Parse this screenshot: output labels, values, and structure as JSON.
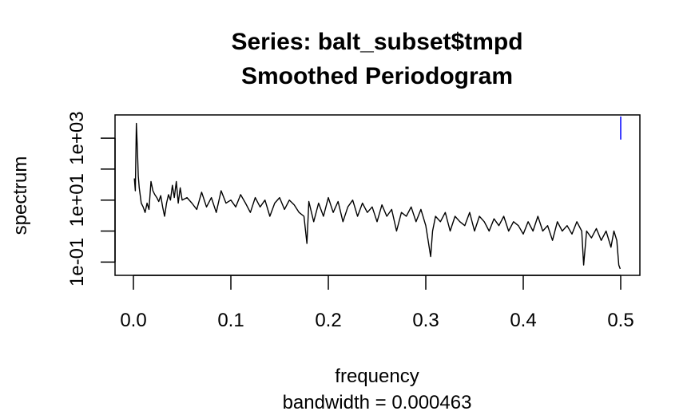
{
  "chart_data": {
    "type": "line",
    "title": "Series: balt_subset$tmpd",
    "subtitle": "Smoothed Periodogram",
    "xlabel": "frequency",
    "xlabel_sub": "bandwidth = 0.000463",
    "ylabel": "spectrum",
    "xlim": [
      0.0,
      0.5
    ],
    "ylim": [
      0.05,
      5000
    ],
    "y_scale": "log",
    "x_ticks": [
      0.0,
      0.1,
      0.2,
      0.3,
      0.4,
      0.5
    ],
    "x_tick_labels": [
      "0.0",
      "0.1",
      "0.2",
      "0.3",
      "0.4",
      "0.5"
    ],
    "y_ticks": [
      0.1,
      1,
      10,
      100,
      1000
    ],
    "y_labeled_ticks": [
      0.1,
      10,
      1000
    ],
    "y_tick_labels": [
      "1e-01",
      "1e+01",
      "1e+03"
    ],
    "grid": false,
    "series_color": "#000000",
    "ci_bar_color": "#0000ff",
    "ci_bar": {
      "x": 0.5,
      "y_low": 900,
      "y_high": 5000
    },
    "series": [
      {
        "x": [
          0.001,
          0.002,
          0.003,
          0.004,
          0.005,
          0.006,
          0.008,
          0.01,
          0.012,
          0.014,
          0.016,
          0.018,
          0.02,
          0.022,
          0.024,
          0.026,
          0.028,
          0.03,
          0.032,
          0.034,
          0.036,
          0.038,
          0.04,
          0.042,
          0.044,
          0.046,
          0.048,
          0.05,
          0.055,
          0.06,
          0.065,
          0.07,
          0.075,
          0.08,
          0.085,
          0.09,
          0.095,
          0.1,
          0.105,
          0.11,
          0.115,
          0.12,
          0.125,
          0.13,
          0.135,
          0.14,
          0.145,
          0.15,
          0.155,
          0.16,
          0.165,
          0.17,
          0.175,
          0.178,
          0.18,
          0.185,
          0.19,
          0.195,
          0.2,
          0.205,
          0.21,
          0.215,
          0.22,
          0.225,
          0.23,
          0.235,
          0.24,
          0.245,
          0.25,
          0.255,
          0.26,
          0.265,
          0.27,
          0.275,
          0.28,
          0.285,
          0.29,
          0.295,
          0.3,
          0.305,
          0.307,
          0.31,
          0.315,
          0.32,
          0.325,
          0.33,
          0.335,
          0.34,
          0.345,
          0.35,
          0.355,
          0.36,
          0.365,
          0.37,
          0.375,
          0.38,
          0.385,
          0.39,
          0.395,
          0.4,
          0.405,
          0.41,
          0.415,
          0.42,
          0.425,
          0.43,
          0.435,
          0.44,
          0.445,
          0.45,
          0.455,
          0.46,
          0.462,
          0.465,
          0.47,
          0.475,
          0.48,
          0.485,
          0.49,
          0.493,
          0.496,
          0.498,
          0.4995
        ],
        "y": [
          50,
          20,
          3000,
          500,
          60,
          25,
          8,
          6,
          4,
          8,
          5,
          40,
          20,
          15,
          12,
          9,
          14,
          6,
          3,
          8,
          15,
          10,
          30,
          12,
          40,
          8,
          25,
          10,
          12,
          8,
          5,
          18,
          6,
          12,
          4,
          20,
          8,
          10,
          6,
          15,
          8,
          4,
          12,
          6,
          10,
          3,
          8,
          12,
          5,
          10,
          7,
          4,
          3,
          0.4,
          9,
          2,
          8,
          3,
          12,
          4,
          9,
          2,
          6,
          10,
          3,
          8,
          4,
          6,
          2,
          7,
          3,
          5,
          1,
          4,
          3,
          6,
          2,
          5,
          1.5,
          0.15,
          1,
          3,
          2,
          4,
          1,
          3,
          2,
          1.5,
          4,
          1,
          3,
          2,
          1,
          2.5,
          1.5,
          3,
          1,
          2,
          1.5,
          0.8,
          2,
          1,
          3,
          1,
          1.5,
          0.5,
          2,
          1,
          1.5,
          0.8,
          2,
          1,
          0.08,
          1,
          0.6,
          1.2,
          0.5,
          1,
          0.3,
          1,
          0.5,
          0.08,
          0.06
        ]
      }
    ]
  }
}
